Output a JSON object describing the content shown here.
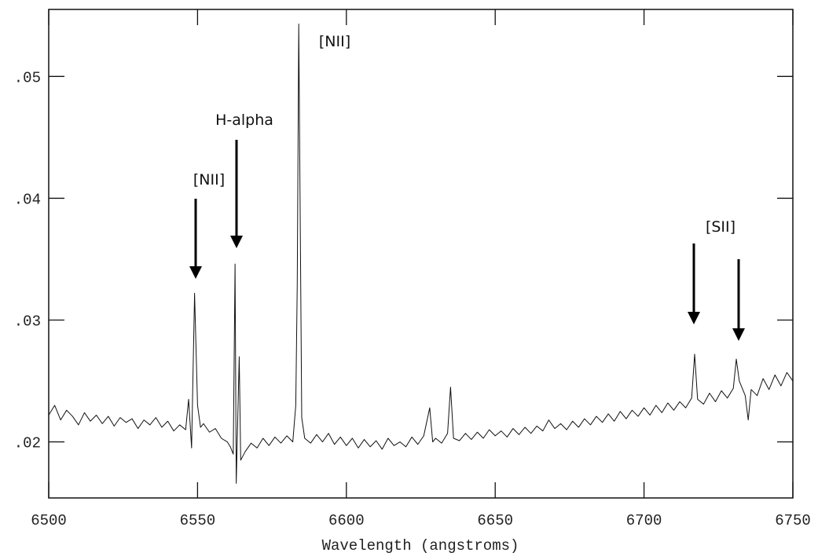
{
  "chart_data": {
    "type": "line",
    "x_label": "Wavelength (angstroms)",
    "annotations": [
      "[NII]",
      "H-alpha",
      "[NII]",
      "[SII]"
    ],
    "xlim": [
      6500,
      6750
    ],
    "xticks": [
      6500,
      6550,
      6600,
      6650,
      6700,
      6750
    ],
    "ylim": [
      0.0154,
      0.0555
    ],
    "yticks": [
      {
        "value": 0.02,
        "label": ".02"
      },
      {
        "value": 0.03,
        "label": ".03"
      },
      {
        "value": 0.04,
        "label": ".04"
      },
      {
        "value": 0.05,
        "label": ".05"
      }
    ],
    "color": "#111111",
    "x": [
      6500,
      6502,
      6504,
      6506,
      6508,
      6510,
      6512,
      6514,
      6516,
      6518,
      6520,
      6522,
      6524,
      6526,
      6528,
      6530,
      6532,
      6534,
      6536,
      6538,
      6540,
      6542,
      6544,
      6546,
      6547,
      6548,
      6549,
      6550,
      6551,
      6552,
      6554,
      6556,
      6558,
      6560,
      6561,
      6562,
      6562.6,
      6563,
      6564,
      6564.5,
      6566,
      6568,
      6570,
      6572,
      6574,
      6576,
      6578,
      6580,
      6582,
      6583,
      6583.5,
      6584,
      6585,
      6586,
      6588,
      6590,
      6592,
      6594,
      6596,
      6598,
      6600,
      6602,
      6604,
      6606,
      6608,
      6610,
      6612,
      6614,
      6616,
      6618,
      6620,
      6622,
      6624,
      6626,
      6628,
      6629,
      6630,
      6632,
      6634,
      6635,
      6636,
      6638,
      6640,
      6642,
      6644,
      6646,
      6648,
      6650,
      6652,
      6654,
      6656,
      6658,
      6660,
      6662,
      6664,
      6666,
      6668,
      6670,
      6672,
      6674,
      6676,
      6678,
      6680,
      6682,
      6684,
      6686,
      6688,
      6690,
      6692,
      6694,
      6696,
      6698,
      6700,
      6702,
      6704,
      6706,
      6708,
      6710,
      6712,
      6714,
      6716,
      6717,
      6718,
      6720,
      6722,
      6724,
      6726,
      6728,
      6730,
      6731,
      6732,
      6734,
      6735,
      6736,
      6738,
      6740,
      6742,
      6744,
      6746,
      6748,
      6750
    ],
    "values": [
      0.0222,
      0.023,
      0.0218,
      0.0226,
      0.0221,
      0.0214,
      0.0224,
      0.0217,
      0.0222,
      0.0215,
      0.0221,
      0.0213,
      0.022,
      0.0216,
      0.0219,
      0.0211,
      0.0218,
      0.0214,
      0.022,
      0.0212,
      0.0217,
      0.0209,
      0.0214,
      0.021,
      0.0235,
      0.0195,
      0.0322,
      0.023,
      0.0212,
      0.0215,
      0.0208,
      0.0211,
      0.0203,
      0.02,
      0.0196,
      0.019,
      0.0346,
      0.0166,
      0.027,
      0.0185,
      0.0192,
      0.0199,
      0.0195,
      0.0203,
      0.0197,
      0.0204,
      0.0199,
      0.0205,
      0.02,
      0.023,
      0.033,
      0.0543,
      0.022,
      0.0203,
      0.0199,
      0.0206,
      0.02,
      0.0207,
      0.0198,
      0.0204,
      0.0197,
      0.0203,
      0.0195,
      0.0202,
      0.0196,
      0.0201,
      0.0194,
      0.0203,
      0.0197,
      0.02,
      0.0196,
      0.0204,
      0.0198,
      0.0205,
      0.0228,
      0.02,
      0.0203,
      0.0199,
      0.0207,
      0.0245,
      0.0203,
      0.0201,
      0.0207,
      0.0202,
      0.0208,
      0.0203,
      0.021,
      0.0205,
      0.0209,
      0.0204,
      0.0211,
      0.0206,
      0.0212,
      0.0207,
      0.0213,
      0.0209,
      0.0218,
      0.0211,
      0.0215,
      0.021,
      0.0217,
      0.0212,
      0.0219,
      0.0214,
      0.0221,
      0.0216,
      0.0223,
      0.0217,
      0.0225,
      0.0219,
      0.0226,
      0.0221,
      0.0228,
      0.0222,
      0.023,
      0.0224,
      0.0232,
      0.0226,
      0.0233,
      0.0228,
      0.0236,
      0.0272,
      0.0235,
      0.0231,
      0.024,
      0.0233,
      0.0242,
      0.0236,
      0.0244,
      0.0268,
      0.025,
      0.0238,
      0.0218,
      0.0243,
      0.0238,
      0.0252,
      0.0243,
      0.0255,
      0.0246,
      0.0257,
      0.025
    ]
  }
}
